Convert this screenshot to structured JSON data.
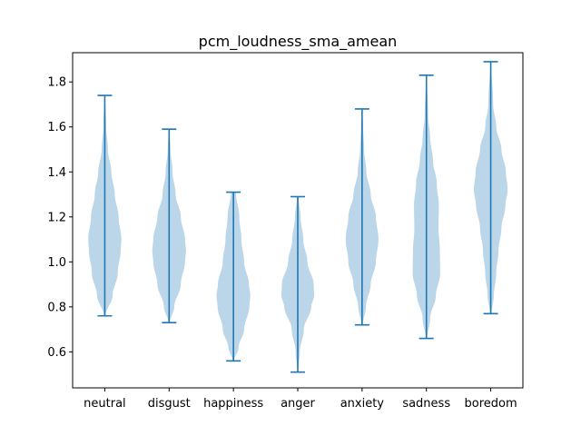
{
  "chart_data": {
    "type": "violin",
    "title": "pcm_loudness_sma_amean",
    "xlabel": "",
    "ylabel": "",
    "categories": [
      "neutral",
      "disgust",
      "happiness",
      "anger",
      "anxiety",
      "sadness",
      "boredom"
    ],
    "ylim": [
      0.44,
      1.93
    ],
    "yticks": [
      0.6,
      0.8,
      1.0,
      1.2,
      1.4,
      1.6,
      1.8
    ],
    "ytick_labels": [
      "0.6",
      "0.8",
      "1.0",
      "1.2",
      "1.4",
      "1.6",
      "1.8"
    ],
    "grid": false,
    "legend": "none",
    "colors": {
      "body": "#1f77b4",
      "body_opacity": 0.3,
      "line": "#1f77b4",
      "axis": "#000000"
    },
    "series": [
      {
        "name": "neutral",
        "min": 0.76,
        "max": 1.74,
        "density": [
          [
            0.76,
            0.04
          ],
          [
            0.85,
            0.45
          ],
          [
            0.95,
            0.75
          ],
          [
            1.05,
            0.92
          ],
          [
            1.1,
            0.96
          ],
          [
            1.2,
            0.8
          ],
          [
            1.3,
            0.58
          ],
          [
            1.4,
            0.38
          ],
          [
            1.5,
            0.18
          ],
          [
            1.6,
            0.08
          ],
          [
            1.74,
            0.02
          ]
        ]
      },
      {
        "name": "disgust",
        "min": 0.73,
        "max": 1.59,
        "density": [
          [
            0.73,
            0.04
          ],
          [
            0.8,
            0.3
          ],
          [
            0.9,
            0.68
          ],
          [
            1.0,
            0.92
          ],
          [
            1.05,
            0.98
          ],
          [
            1.1,
            0.92
          ],
          [
            1.2,
            0.68
          ],
          [
            1.3,
            0.38
          ],
          [
            1.4,
            0.2
          ],
          [
            1.5,
            0.08
          ],
          [
            1.59,
            0.02
          ]
        ]
      },
      {
        "name": "happiness",
        "min": 0.56,
        "max": 1.31,
        "density": [
          [
            0.56,
            0.04
          ],
          [
            0.62,
            0.3
          ],
          [
            0.7,
            0.62
          ],
          [
            0.8,
            0.92
          ],
          [
            0.85,
            0.98
          ],
          [
            0.9,
            0.9
          ],
          [
            1.0,
            0.62
          ],
          [
            1.1,
            0.46
          ],
          [
            1.2,
            0.34
          ],
          [
            1.31,
            0.14
          ]
        ]
      },
      {
        "name": "anger",
        "min": 0.51,
        "max": 1.29,
        "density": [
          [
            0.51,
            0.02
          ],
          [
            0.6,
            0.12
          ],
          [
            0.7,
            0.35
          ],
          [
            0.8,
            0.78
          ],
          [
            0.85,
            0.95
          ],
          [
            0.9,
            0.92
          ],
          [
            1.0,
            0.56
          ],
          [
            1.1,
            0.32
          ],
          [
            1.2,
            0.16
          ],
          [
            1.29,
            0.04
          ]
        ]
      },
      {
        "name": "anxiety",
        "min": 0.72,
        "max": 1.68,
        "density": [
          [
            0.72,
            0.04
          ],
          [
            0.8,
            0.22
          ],
          [
            0.9,
            0.5
          ],
          [
            1.0,
            0.8
          ],
          [
            1.1,
            0.95
          ],
          [
            1.2,
            0.8
          ],
          [
            1.3,
            0.5
          ],
          [
            1.4,
            0.25
          ],
          [
            1.5,
            0.12
          ],
          [
            1.6,
            0.06
          ],
          [
            1.68,
            0.02
          ]
        ]
      },
      {
        "name": "sadness",
        "min": 0.66,
        "max": 1.83,
        "density": [
          [
            0.66,
            0.04
          ],
          [
            0.75,
            0.22
          ],
          [
            0.85,
            0.55
          ],
          [
            0.95,
            0.8
          ],
          [
            1.05,
            0.78
          ],
          [
            1.15,
            0.7
          ],
          [
            1.25,
            0.72
          ],
          [
            1.35,
            0.6
          ],
          [
            1.45,
            0.38
          ],
          [
            1.55,
            0.22
          ],
          [
            1.65,
            0.1
          ],
          [
            1.83,
            0.02
          ]
        ]
      },
      {
        "name": "boredom",
        "min": 0.77,
        "max": 1.89,
        "density": [
          [
            0.77,
            0.04
          ],
          [
            0.85,
            0.18
          ],
          [
            0.95,
            0.32
          ],
          [
            1.05,
            0.45
          ],
          [
            1.15,
            0.62
          ],
          [
            1.25,
            0.85
          ],
          [
            1.32,
            0.98
          ],
          [
            1.4,
            0.88
          ],
          [
            1.5,
            0.62
          ],
          [
            1.6,
            0.32
          ],
          [
            1.7,
            0.14
          ],
          [
            1.89,
            0.02
          ]
        ]
      }
    ]
  }
}
